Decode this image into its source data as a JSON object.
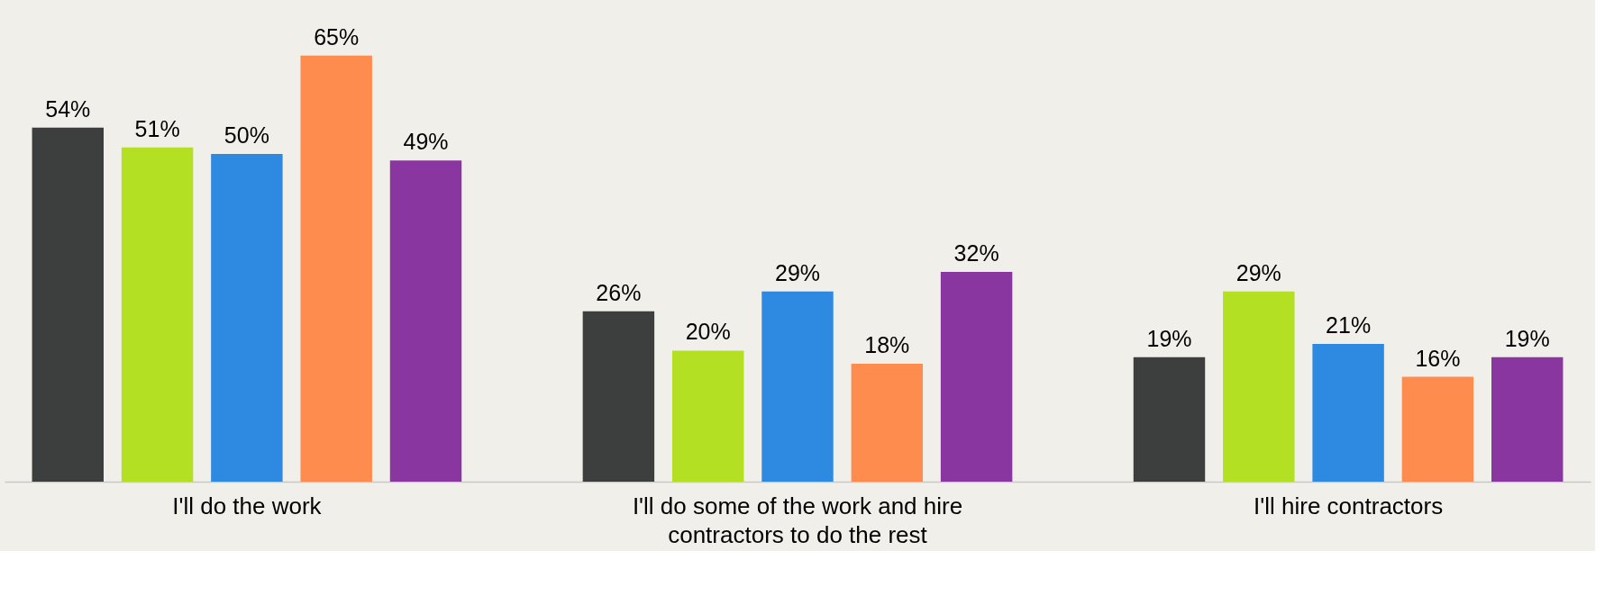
{
  "chart_data": {
    "type": "bar",
    "categories": [
      "I'll do the work",
      "I'll do some of the work and hire\ncontractors to do the rest",
      "I'll hire contractors"
    ],
    "series": [
      {
        "color": "#3d3f3e",
        "values": [
          54,
          26,
          19
        ],
        "value_labels": [
          "54%",
          "26%",
          "19%"
        ]
      },
      {
        "color": "#b3e023",
        "values": [
          51,
          20,
          29
        ],
        "value_labels": [
          "51%",
          "20%",
          "29%"
        ]
      },
      {
        "color": "#2e8ae0",
        "values": [
          50,
          29,
          21
        ],
        "value_labels": [
          "50%",
          "29%",
          "21%"
        ]
      },
      {
        "color": "#ff8c4f",
        "values": [
          65,
          18,
          16
        ],
        "value_labels": [
          "65%",
          "18%",
          "16%"
        ]
      },
      {
        "color": "#8a36a0",
        "values": [
          49,
          32,
          19
        ],
        "value_labels": [
          "49%",
          "32%",
          "19%"
        ]
      }
    ],
    "grid": false,
    "legend": false
  }
}
